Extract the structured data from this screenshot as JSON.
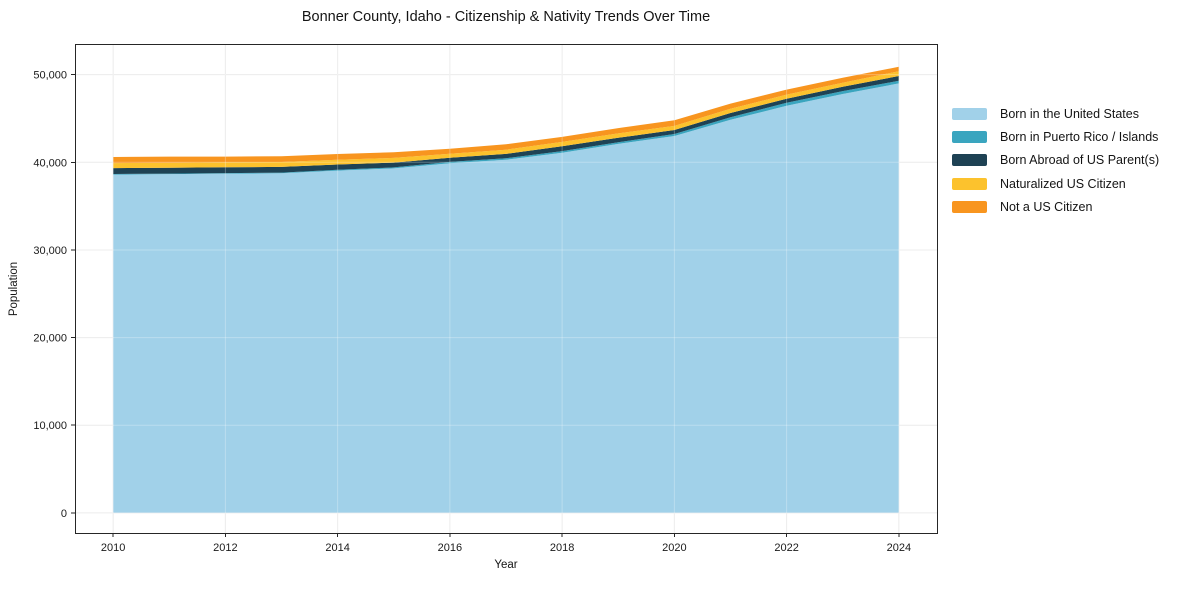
{
  "chart_data": {
    "type": "area",
    "stacked": true,
    "title": "Bonner County, Idaho - Citizenship & Nativity Trends Over Time",
    "xlabel": "Year",
    "ylabel": "Population",
    "grid": true,
    "legend_position": "right-outside",
    "x": [
      2010,
      2011,
      2012,
      2013,
      2014,
      2015,
      2016,
      2017,
      2018,
      2019,
      2020,
      2021,
      2022,
      2023,
      2024
    ],
    "series": [
      {
        "name": "Born in the United States",
        "color": "#a1d1e9",
        "values": [
          38600,
          38650,
          38700,
          38750,
          39050,
          39300,
          39900,
          40300,
          41100,
          42100,
          43000,
          44850,
          46450,
          47800,
          49000
        ]
      },
      {
        "name": "Born in Puerto Rico / Islands",
        "color": "#3aa5bf",
        "values": [
          60,
          60,
          70,
          80,
          100,
          120,
          150,
          160,
          180,
          200,
          230,
          280,
          340,
          320,
          300
        ]
      },
      {
        "name": "Born Abroad of US Parent(s)",
        "color": "#1e4254",
        "values": [
          680,
          670,
          660,
          650,
          600,
          550,
          460,
          500,
          550,
          500,
          460,
          500,
          460,
          500,
          550
        ]
      },
      {
        "name": "Naturalized US Citizen",
        "color": "#fcc22d",
        "values": [
          570,
          580,
          570,
          560,
          540,
          530,
          460,
          480,
          500,
          500,
          470,
          480,
          480,
          450,
          550
        ]
      },
      {
        "name": "Not a US Citizen",
        "color": "#f8951f",
        "values": [
          690,
          690,
          650,
          660,
          660,
          650,
          580,
          620,
          570,
          600,
          640,
          590,
          570,
          580,
          500
        ]
      }
    ],
    "xticks": [
      2010,
      2012,
      2014,
      2016,
      2018,
      2020,
      2022,
      2024
    ],
    "yticks": [
      0,
      10000,
      20000,
      30000,
      40000,
      50000
    ],
    "ytick_labels": [
      "0",
      "10,000",
      "20,000",
      "30,000",
      "40,000",
      "50,000"
    ],
    "xlim": [
      2009.32,
      2024.68
    ],
    "ylim": [
      -2300,
      53500
    ],
    "colors": {
      "spine": "#262626",
      "grid": "#e7e7e7",
      "tick_label": "#1a1a1a"
    }
  }
}
